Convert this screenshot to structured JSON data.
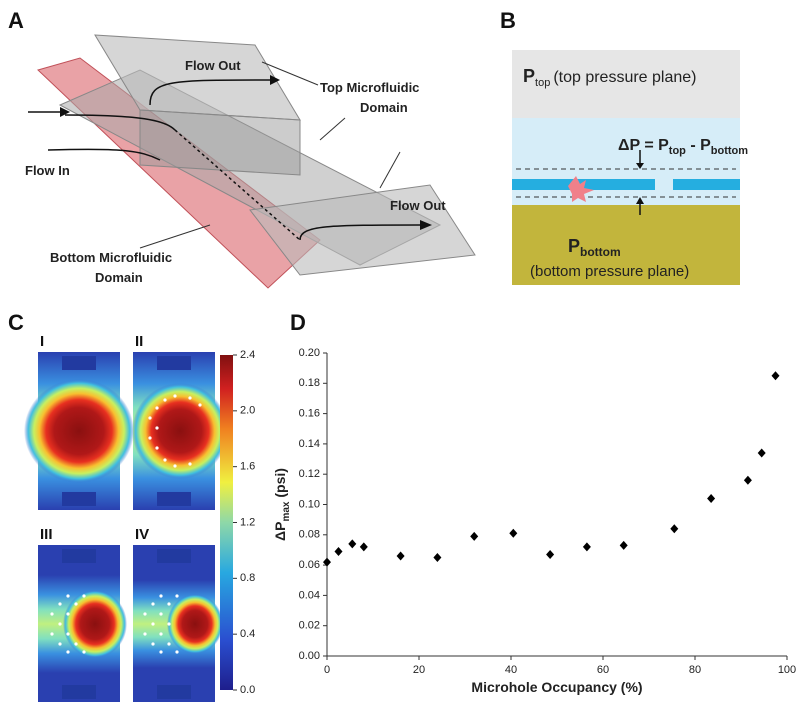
{
  "panels": {
    "a": "A",
    "b": "B",
    "c": "C",
    "d": "D"
  },
  "diagram_a": {
    "flow_out_top": "Flow Out",
    "top_domain_1": "Top Microfluidic",
    "top_domain_2": "Domain",
    "flow_in": "Flow In",
    "bottom_domain_1": "Bottom Microfluidic",
    "bottom_domain_2": "Domain",
    "flow_out_bottom": "Flow Out"
  },
  "diagram_b": {
    "p_top": "P",
    "p_top_sub": "top",
    "p_top_desc": "(top pressure plane)",
    "dp": "ΔP = P",
    "dp_sub1": "top",
    "dp_mid": " - P",
    "dp_sub2": "bottom",
    "p_bottom": "P",
    "p_bottom_sub": "bottom",
    "p_bottom_desc": "(bottom pressure plane)"
  },
  "heatmaps": {
    "labels": [
      "I",
      "II",
      "III",
      "IV"
    ],
    "colorbar_ticks": [
      {
        "value": 2.4,
        "label": "2.4"
      },
      {
        "value": 2.0,
        "label": "2.0"
      },
      {
        "value": 1.6,
        "label": "1.6"
      },
      {
        "value": 1.2,
        "label": "1.2"
      },
      {
        "value": 0.8,
        "label": "0.8"
      },
      {
        "value": 0.4,
        "label": "0.4"
      },
      {
        "value": 0.0,
        "label": "0.0"
      }
    ],
    "colorbar_lim": [
      0,
      2.4
    ]
  },
  "chart_data": {
    "type": "scatter",
    "x_label": "Microhole Occupancy (%)",
    "y_label": "ΔP",
    "y_label_sub": "max",
    "y_label_suffix": " (psi)",
    "color": "#000000",
    "x": [
      0,
      2.5,
      5.5,
      8,
      16,
      24,
      32,
      40.5,
      48.5,
      56.5,
      64.5,
      75.5,
      83.5,
      91.5,
      94.5,
      97.5
    ],
    "values": [
      0.062,
      0.069,
      0.074,
      0.072,
      0.066,
      0.065,
      0.079,
      0.081,
      0.067,
      0.072,
      0.073,
      0.084,
      0.104,
      0.116,
      0.134,
      0.185
    ],
    "xlim": [
      0,
      100
    ],
    "xticks": [
      0,
      20,
      40,
      60,
      80,
      100
    ],
    "ylim": [
      0,
      0.2
    ],
    "yticks": [
      {
        "value": 0,
        "label": "0.00"
      },
      {
        "value": 0.02,
        "label": "0.02"
      },
      {
        "value": 0.04,
        "label": "0.04"
      },
      {
        "value": 0.06,
        "label": "0.06"
      },
      {
        "value": 0.08,
        "label": "0.08"
      },
      {
        "value": 0.1,
        "label": "0.10"
      },
      {
        "value": 0.12,
        "label": "0.12"
      },
      {
        "value": 0.14,
        "label": "0.14"
      },
      {
        "value": 0.16,
        "label": "0.16"
      },
      {
        "value": 0.18,
        "label": "0.18"
      },
      {
        "value": 0.2,
        "label": "0.20"
      }
    ]
  }
}
